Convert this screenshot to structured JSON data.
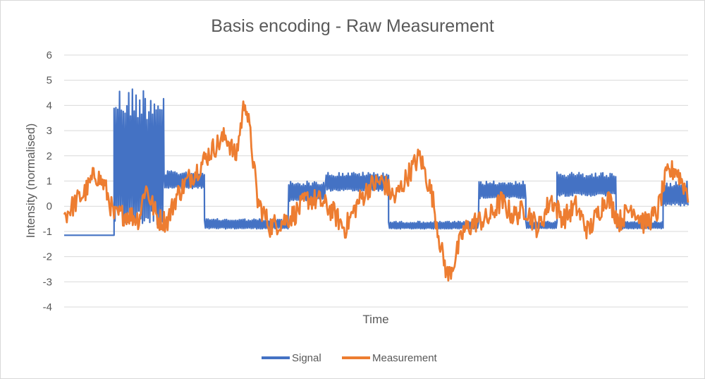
{
  "chart_data": {
    "type": "line",
    "title": "Basis encoding - Raw Measurement",
    "xlabel": "Time",
    "ylabel": "Intensity (normalised)",
    "ylim": [
      -4,
      6
    ],
    "yticks": [
      6,
      5,
      4,
      3,
      2,
      1,
      0,
      -1,
      -2,
      -3,
      -4
    ],
    "grid": true,
    "legend_position": "bottom",
    "x_tick_labels": "none",
    "series": [
      {
        "name": "Signal",
        "color": "#4472c4",
        "description": "Square-wave basis signal with dense oscillating bursts",
        "segments": [
          {
            "x_start": 0.0,
            "x_end": 0.08,
            "low": -1.2,
            "high": -1.15,
            "pattern": "flat"
          },
          {
            "x_start": 0.08,
            "x_end": 0.16,
            "low": -0.8,
            "high": 4.8,
            "pattern": "burst"
          },
          {
            "x_start": 0.16,
            "x_end": 0.225,
            "low": 0.7,
            "high": 1.4,
            "pattern": "burst"
          },
          {
            "x_start": 0.225,
            "x_end": 0.36,
            "low": -0.9,
            "high": -0.5,
            "pattern": "burst"
          },
          {
            "x_start": 0.36,
            "x_end": 0.42,
            "low": 0.2,
            "high": 1.0,
            "pattern": "burst"
          },
          {
            "x_start": 0.42,
            "x_end": 0.52,
            "low": 0.6,
            "high": 1.35,
            "pattern": "burst"
          },
          {
            "x_start": 0.52,
            "x_end": 0.665,
            "low": -0.9,
            "high": -0.6,
            "pattern": "burst"
          },
          {
            "x_start": 0.665,
            "x_end": 0.74,
            "low": 0.3,
            "high": 1.0,
            "pattern": "burst"
          },
          {
            "x_start": 0.74,
            "x_end": 0.79,
            "low": -0.9,
            "high": -0.6,
            "pattern": "burst"
          },
          {
            "x_start": 0.79,
            "x_end": 0.885,
            "low": 0.4,
            "high": 1.35,
            "pattern": "burst"
          },
          {
            "x_start": 0.885,
            "x_end": 0.96,
            "low": -0.9,
            "high": -0.6,
            "pattern": "burst"
          },
          {
            "x_start": 0.96,
            "x_end": 1.0,
            "low": 0.0,
            "high": 1.0,
            "pattern": "burst"
          }
        ]
      },
      {
        "name": "Measurement",
        "color": "#ed7d31",
        "description": "Noisy measured intensity",
        "keypoints": [
          [
            0.0,
            -0.4
          ],
          [
            0.02,
            0.2
          ],
          [
            0.035,
            0.6
          ],
          [
            0.05,
            1.3
          ],
          [
            0.065,
            0.8
          ],
          [
            0.08,
            -0.4
          ],
          [
            0.1,
            -0.3
          ],
          [
            0.12,
            -0.5
          ],
          [
            0.13,
            0.8
          ],
          [
            0.15,
            -0.5
          ],
          [
            0.165,
            -0.6
          ],
          [
            0.18,
            0.4
          ],
          [
            0.2,
            1.1
          ],
          [
            0.215,
            1.5
          ],
          [
            0.235,
            2.2
          ],
          [
            0.26,
            2.8
          ],
          [
            0.275,
            1.9
          ],
          [
            0.29,
            4.3
          ],
          [
            0.3,
            2.5
          ],
          [
            0.31,
            0.2
          ],
          [
            0.33,
            -0.8
          ],
          [
            0.35,
            -0.6
          ],
          [
            0.37,
            -0.3
          ],
          [
            0.39,
            0.3
          ],
          [
            0.41,
            0.2
          ],
          [
            0.43,
            -0.2
          ],
          [
            0.45,
            -0.9
          ],
          [
            0.47,
            0.1
          ],
          [
            0.49,
            0.8
          ],
          [
            0.51,
            1.0
          ],
          [
            0.53,
            0.3
          ],
          [
            0.55,
            1.2
          ],
          [
            0.57,
            2.0
          ],
          [
            0.59,
            0.4
          ],
          [
            0.605,
            -1.8
          ],
          [
            0.615,
            -2.8
          ],
          [
            0.625,
            -2.2
          ],
          [
            0.64,
            -1.0
          ],
          [
            0.66,
            -0.6
          ],
          [
            0.68,
            -0.5
          ],
          [
            0.7,
            0.2
          ],
          [
            0.72,
            -0.4
          ],
          [
            0.74,
            -0.1
          ],
          [
            0.76,
            -0.9
          ],
          [
            0.78,
            0.3
          ],
          [
            0.8,
            -0.5
          ],
          [
            0.82,
            0.0
          ],
          [
            0.84,
            -1.0
          ],
          [
            0.855,
            -0.3
          ],
          [
            0.87,
            0.4
          ],
          [
            0.89,
            -0.6
          ],
          [
            0.91,
            0.0
          ],
          [
            0.93,
            -0.7
          ],
          [
            0.95,
            -0.3
          ],
          [
            0.965,
            1.2
          ],
          [
            0.98,
            1.5
          ],
          [
            1.0,
            0.5
          ]
        ]
      }
    ]
  }
}
